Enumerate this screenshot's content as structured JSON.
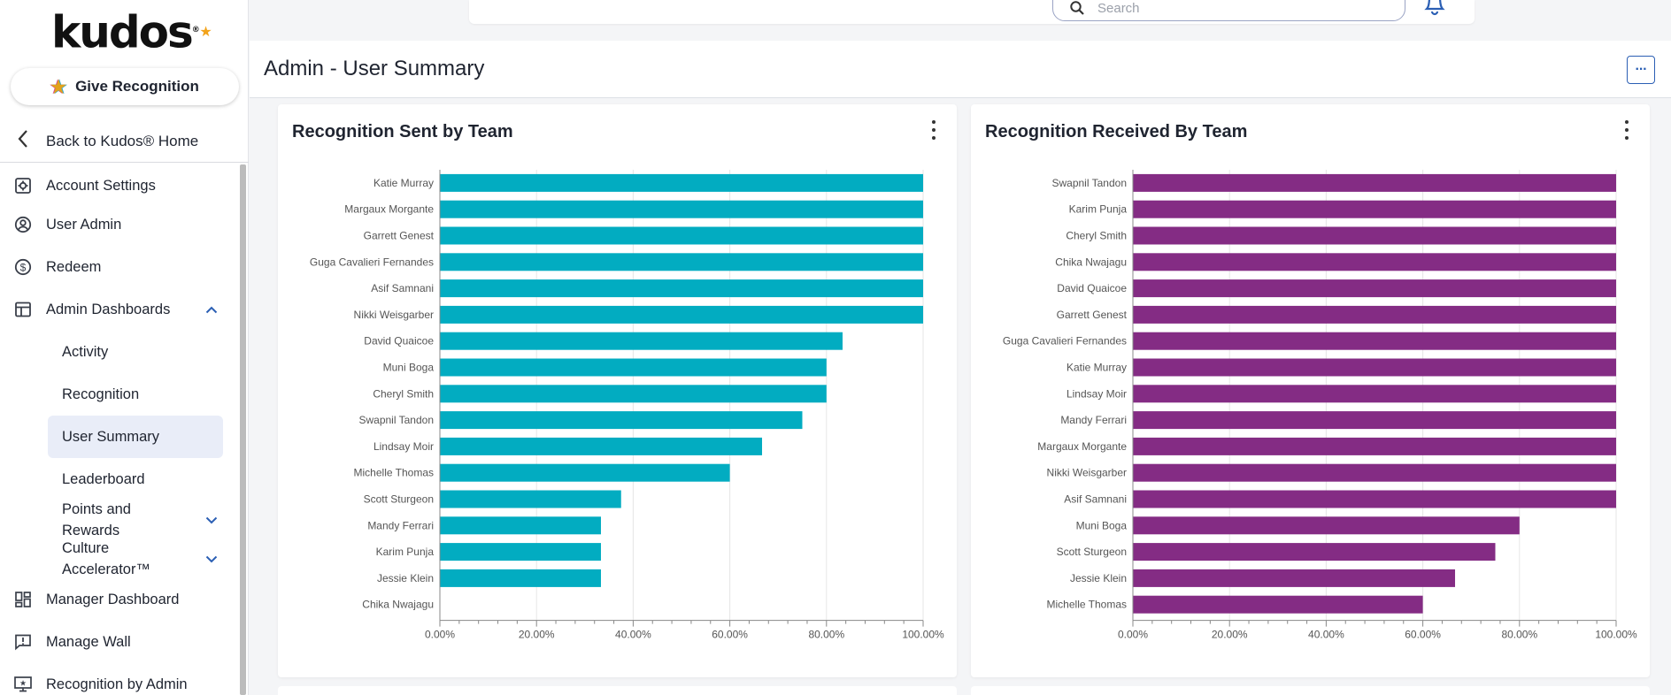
{
  "brand": {
    "logo_text": "kudos",
    "logo_mark": "®",
    "logo_star": "★"
  },
  "sidebar": {
    "give_label": "Give Recognition",
    "back_label": "Back to Kudos® Home",
    "items": [
      {
        "label": "Account Settings",
        "icon": "gear-icon"
      },
      {
        "label": "User Admin",
        "icon": "user-circle-icon"
      },
      {
        "label": "Redeem",
        "icon": "dollar-circle-icon"
      },
      {
        "label": "Admin Dashboards",
        "icon": "table-icon"
      }
    ],
    "sub_items": [
      {
        "label": "Activity"
      },
      {
        "label": "Recognition"
      },
      {
        "label": "User Summary"
      },
      {
        "label": "Leaderboard"
      },
      {
        "label": "Points and Rewards"
      },
      {
        "label": "Culture Accelerator™"
      }
    ],
    "bottom_items": [
      {
        "label": "Manager Dashboard",
        "icon": "dashboard-icon"
      },
      {
        "label": "Manage Wall",
        "icon": "alert-message-icon"
      },
      {
        "label": "Recognition by Admin",
        "icon": "monitor-star-icon"
      }
    ]
  },
  "topbar": {
    "search_placeholder": "Search"
  },
  "header": {
    "title": "Admin - User Summary",
    "more_label": "···"
  },
  "colors": {
    "sent": "#02acc1",
    "received": "#842c84",
    "accent": "#2b5fb4"
  },
  "chart_data": [
    {
      "type": "bar",
      "orientation": "horizontal",
      "title": "Recognition Sent by Team",
      "categories": [
        "Katie Murray",
        "Margaux Morgante",
        "Garrett Genest",
        "Guga Cavalieri Fernandes",
        "Asif Samnani",
        "Nikki Weisgarber",
        "David Quaicoe",
        "Muni Boga",
        "Cheryl Smith",
        "Swapnil Tandon",
        "Lindsay Moir",
        "Michelle Thomas",
        "Scott Sturgeon",
        "Mandy Ferrari",
        "Karim Punja",
        "Jessie Klein",
        "Chika Nwajagu"
      ],
      "values": [
        100,
        100,
        100,
        100,
        100,
        100,
        83.33,
        80,
        80,
        75,
        66.67,
        60,
        37.5,
        33.33,
        33.33,
        33.33,
        0
      ],
      "xlim": [
        0,
        100
      ],
      "xticks": [
        "0.00%",
        "20.00%",
        "40.00%",
        "60.00%",
        "80.00%",
        "100.00%"
      ]
    },
    {
      "type": "bar",
      "orientation": "horizontal",
      "title": "Recognition Received By Team",
      "categories": [
        "Swapnil Tandon",
        "Karim Punja",
        "Cheryl Smith",
        "Chika Nwajagu",
        "David Quaicoe",
        "Garrett Genest",
        "Guga Cavalieri Fernandes",
        "Katie Murray",
        "Lindsay Moir",
        "Mandy Ferrari",
        "Margaux Morgante",
        "Nikki Weisgarber",
        "Asif Samnani",
        "Muni Boga",
        "Scott Sturgeon",
        "Jessie Klein",
        "Michelle Thomas"
      ],
      "values": [
        100,
        100,
        100,
        100,
        100,
        100,
        100,
        100,
        100,
        100,
        100,
        100,
        100,
        80,
        75,
        66.67,
        60
      ],
      "xlim": [
        0,
        100
      ],
      "xticks": [
        "0.00%",
        "20.00%",
        "40.00%",
        "60.00%",
        "80.00%",
        "100.00%"
      ]
    }
  ]
}
